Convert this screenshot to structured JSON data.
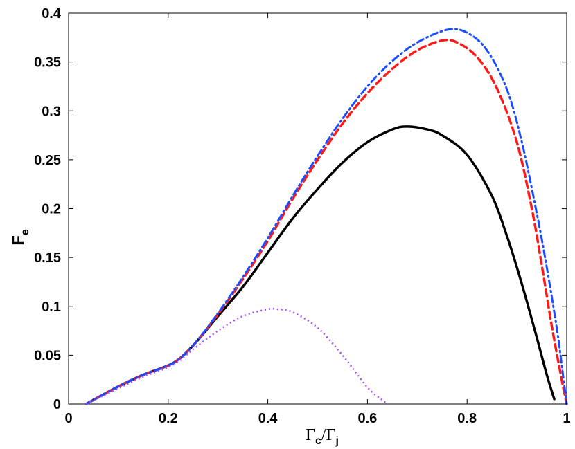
{
  "chart_data": {
    "type": "line",
    "xlabel": "Γc/Γj",
    "xlabel_parts": {
      "main": "Γ",
      "sub1": "c",
      "sep": "/Γ",
      "sub2": "j"
    },
    "ylabel": "Fe",
    "ylabel_parts": {
      "main": "F",
      "sub": "e"
    },
    "xlim": [
      0,
      1
    ],
    "ylim": [
      0,
      0.4
    ],
    "x_ticks": [
      0,
      0.2,
      0.4,
      0.6,
      0.8,
      1
    ],
    "x_tick_labels": [
      "0",
      "0.2",
      "0.4",
      "0.6",
      "0.8",
      "1"
    ],
    "y_ticks": [
      0,
      0.05,
      0.1,
      0.15,
      0.2,
      0.25,
      0.3,
      0.35,
      0.4
    ],
    "y_tick_labels": [
      "0",
      "0.05",
      "0.1",
      "0.15",
      "0.2",
      "0.25",
      "0.3",
      "0.35",
      "0.4"
    ],
    "grid": false,
    "series": [
      {
        "style": "solid",
        "color": "#000000",
        "x": [
          0.035,
          0.1,
          0.15,
          0.21,
          0.25,
          0.3,
          0.35,
          0.4,
          0.45,
          0.5,
          0.55,
          0.6,
          0.65,
          0.68,
          0.72,
          0.75,
          0.8,
          0.85,
          0.88,
          0.9,
          0.92,
          0.94,
          0.96,
          0.975
        ],
        "y": [
          0.0,
          0.018,
          0.03,
          0.042,
          0.06,
          0.09,
          0.12,
          0.155,
          0.19,
          0.22,
          0.247,
          0.268,
          0.281,
          0.284,
          0.281,
          0.275,
          0.255,
          0.213,
          0.172,
          0.14,
          0.105,
          0.068,
          0.03,
          0.005
        ]
      },
      {
        "style": "dashed",
        "color": "#ff1a1a",
        "x": [
          0.035,
          0.1,
          0.15,
          0.21,
          0.25,
          0.3,
          0.35,
          0.4,
          0.45,
          0.5,
          0.55,
          0.6,
          0.65,
          0.7,
          0.75,
          0.78,
          0.82,
          0.86,
          0.9,
          0.93,
          0.95,
          0.97,
          0.99,
          1.0
        ],
        "y": [
          0.0,
          0.018,
          0.03,
          0.042,
          0.06,
          0.092,
          0.128,
          0.167,
          0.21,
          0.25,
          0.287,
          0.318,
          0.343,
          0.362,
          0.372,
          0.37,
          0.355,
          0.323,
          0.268,
          0.2,
          0.142,
          0.08,
          0.025,
          0.0
        ]
      },
      {
        "style": "dashdot",
        "color": "#1a4dff",
        "x": [
          0.035,
          0.1,
          0.15,
          0.21,
          0.25,
          0.3,
          0.35,
          0.4,
          0.45,
          0.5,
          0.55,
          0.6,
          0.65,
          0.7,
          0.76,
          0.8,
          0.84,
          0.88,
          0.91,
          0.94,
          0.96,
          0.98,
          0.99,
          1.0
        ],
        "y": [
          0.0,
          0.018,
          0.03,
          0.042,
          0.06,
          0.093,
          0.13,
          0.17,
          0.213,
          0.254,
          0.292,
          0.325,
          0.351,
          0.37,
          0.383,
          0.38,
          0.362,
          0.322,
          0.268,
          0.195,
          0.14,
          0.078,
          0.04,
          0.0
        ]
      },
      {
        "style": "dotted",
        "color": "#a64dff",
        "x": [
          0.035,
          0.1,
          0.15,
          0.21,
          0.25,
          0.3,
          0.35,
          0.4,
          0.42,
          0.45,
          0.5,
          0.55,
          0.6,
          0.63,
          0.64
        ],
        "y": [
          0.0,
          0.016,
          0.028,
          0.04,
          0.056,
          0.075,
          0.09,
          0.097,
          0.097,
          0.094,
          0.078,
          0.05,
          0.017,
          0.004,
          0.0
        ]
      }
    ]
  }
}
